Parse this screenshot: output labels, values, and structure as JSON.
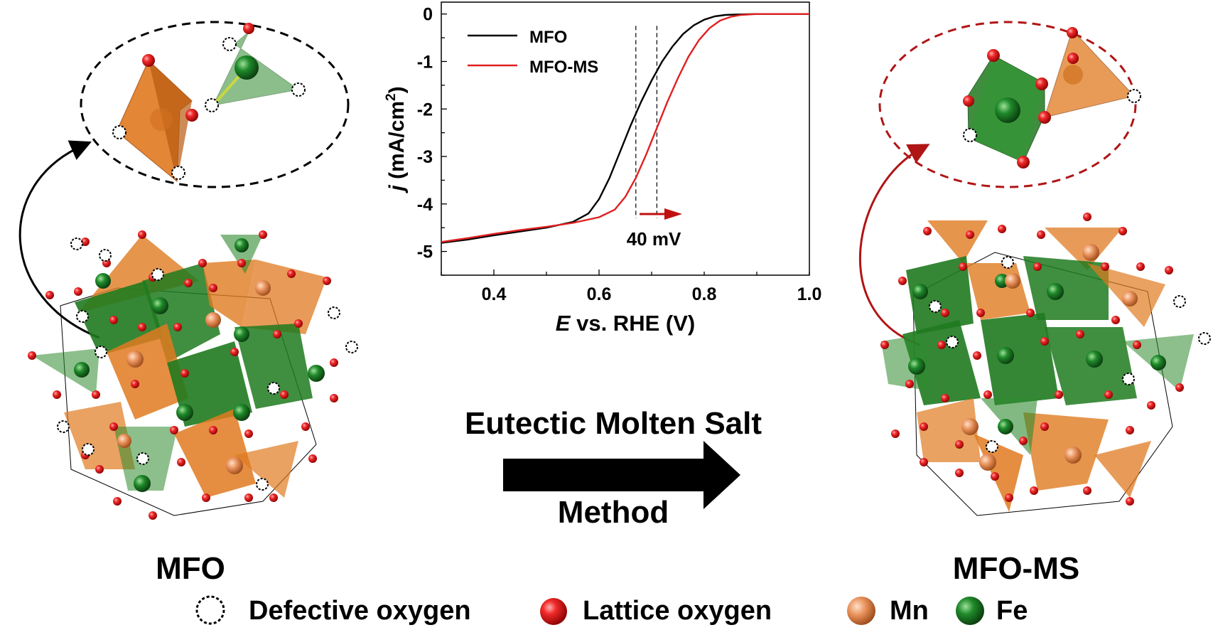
{
  "labels": {
    "left_structure": "MFO",
    "right_structure": "MFO-MS",
    "method_line1": "Eutectic Molten Salt",
    "method_line2": "Method"
  },
  "legend": [
    {
      "label": "Defective oxygen",
      "icon": "dotted-circle-icon"
    },
    {
      "label": "Lattice oxygen",
      "icon": "red-sphere-icon",
      "color": "#e02020"
    },
    {
      "label": "Mn",
      "icon": "orange-sphere-icon",
      "color": "#e8905a"
    },
    {
      "label": "Fe",
      "icon": "green-sphere-icon",
      "color": "#1f8a2a"
    }
  ],
  "colors": {
    "mfo": "#000000",
    "mfo_ms": "#e02020",
    "mn_polyhedron": "#e07a20",
    "fe_polyhedron": "#1f7a1f",
    "arrow_right_structure": "#b01515"
  },
  "chart_data": {
    "type": "line",
    "xlabel_italic": "E",
    "xlabel_rest": " vs. RHE (V)",
    "ylabel_italic": "j",
    "ylabel_rest": " (mA/cm",
    "ylabel_sup": "2",
    "ylabel_close": ")",
    "xlim": [
      0.3,
      1.0
    ],
    "ylim": [
      -5.5,
      0.25
    ],
    "xticks": [
      "0.4",
      "0.6",
      "0.8",
      "1.0"
    ],
    "xtick_values": [
      0.4,
      0.6,
      0.8,
      1.0
    ],
    "yticks": [
      "0",
      "-1",
      "-2",
      "-3",
      "-4",
      "-5"
    ],
    "ytick_values": [
      0,
      -1,
      -2,
      -3,
      -4,
      -5
    ],
    "legend_position": "top-left",
    "series": [
      {
        "name": "MFO",
        "color": "#000000",
        "x": [
          0.3,
          0.35,
          0.4,
          0.45,
          0.5,
          0.55,
          0.58,
          0.6,
          0.62,
          0.64,
          0.66,
          0.68,
          0.7,
          0.72,
          0.74,
          0.76,
          0.78,
          0.8,
          0.82,
          0.84,
          0.86,
          0.9,
          0.95,
          1.0
        ],
        "y": [
          -4.82,
          -4.75,
          -4.66,
          -4.58,
          -4.5,
          -4.38,
          -4.2,
          -3.9,
          -3.45,
          -2.9,
          -2.35,
          -1.85,
          -1.4,
          -1.0,
          -0.68,
          -0.42,
          -0.24,
          -0.12,
          -0.05,
          -0.02,
          -0.01,
          0.0,
          0.0,
          0.0
        ]
      },
      {
        "name": "MFO-MS",
        "color": "#e02020",
        "x": [
          0.3,
          0.35,
          0.4,
          0.45,
          0.5,
          0.55,
          0.6,
          0.63,
          0.65,
          0.67,
          0.69,
          0.71,
          0.73,
          0.75,
          0.77,
          0.79,
          0.81,
          0.83,
          0.85,
          0.87,
          0.9,
          0.95,
          1.0
        ],
        "y": [
          -4.8,
          -4.72,
          -4.63,
          -4.55,
          -4.48,
          -4.4,
          -4.28,
          -4.12,
          -3.85,
          -3.45,
          -2.95,
          -2.4,
          -1.85,
          -1.35,
          -0.9,
          -0.55,
          -0.3,
          -0.14,
          -0.06,
          -0.02,
          0.0,
          0.0,
          0.0
        ]
      }
    ],
    "marker_lines_x": [
      0.67,
      0.71
    ],
    "annotation": "40 mV"
  }
}
